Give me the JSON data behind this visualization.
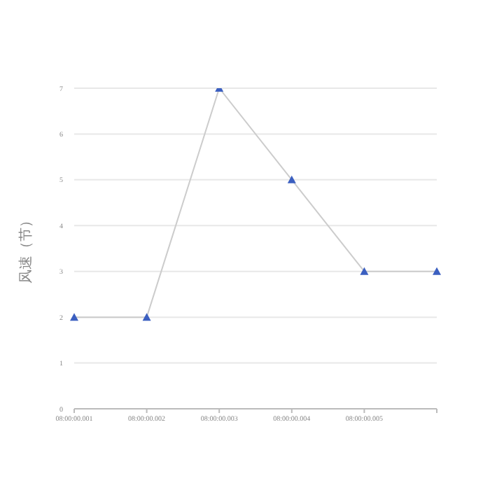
{
  "chart_data": {
    "type": "line",
    "ylabel": "风速（节）",
    "categories": [
      "08:00:00.001",
      "08:00:00.002",
      "08:00:00.003",
      "08:00:00.004",
      "08:00:00.005",
      null
    ],
    "series": [
      {
        "color": "#cccccc",
        "values": [
          2,
          2,
          7,
          5,
          3,
          3
        ]
      }
    ],
    "ylim": [
      0,
      7
    ],
    "yticks": [
      0,
      1,
      2,
      3,
      4,
      5,
      6,
      7
    ],
    "grid": "y",
    "marker": "triangle"
  }
}
